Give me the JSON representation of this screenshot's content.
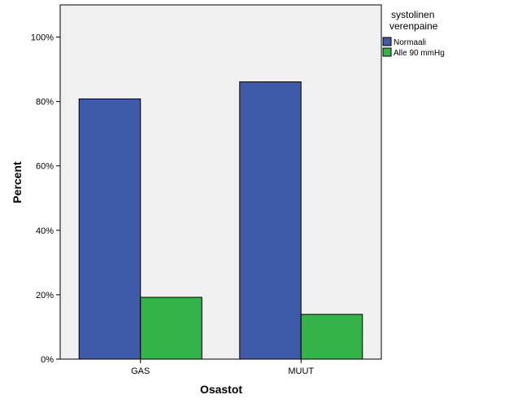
{
  "chart_data": {
    "type": "bar",
    "categories": [
      "GAS",
      "MUUT"
    ],
    "series": [
      {
        "name": "Normaali",
        "values": [
          80.8,
          86.1
        ],
        "color": "#3f5aa8"
      },
      {
        "name": "Alle 90 mmHg",
        "values": [
          19.2,
          13.9
        ],
        "color": "#33b34a"
      }
    ],
    "xlabel": "Osastot",
    "ylabel": "Percent",
    "ylim": [
      0,
      110
    ],
    "yticks": [
      0,
      20,
      40,
      60,
      80,
      100
    ],
    "ytick_labels": [
      "0%",
      "20%",
      "40%",
      "60%",
      "80%",
      "100%"
    ],
    "legend": {
      "title_lines": [
        "systolinen",
        "verenpaine"
      ],
      "placement": "right"
    },
    "plot_background": "#f0f0f0",
    "grid": false
  }
}
